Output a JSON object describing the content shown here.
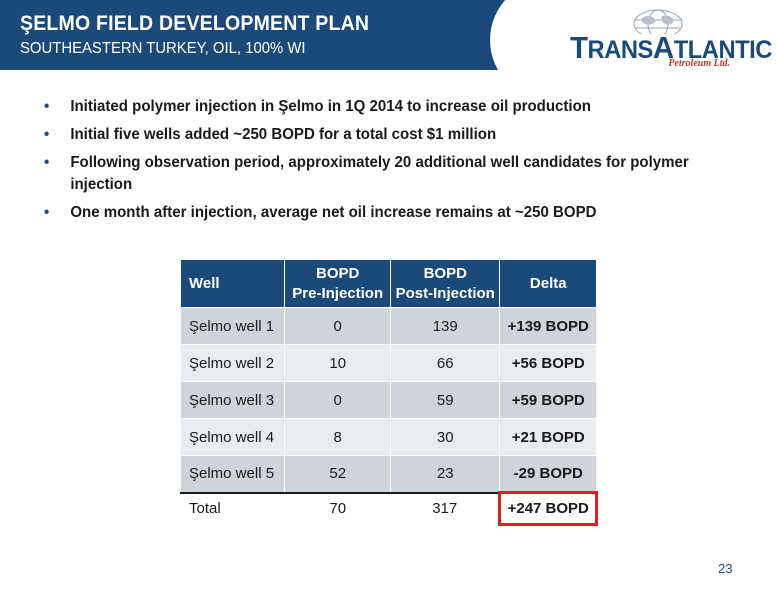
{
  "header": {
    "title": "ŞELMO FIELD DEVELOPMENT PLAN",
    "subtitle": "SOUTHEASTERN TURKEY, OIL, 100% WI"
  },
  "logo": {
    "name_part1": "T",
    "name_part2": "RANS",
    "name_part3": "A",
    "name_part4": "TLANTIC",
    "tagline": "Petroleum Ltd."
  },
  "bullets": [
    "Initiated polymer injection in Şelmo in 1Q 2014 to increase oil production",
    "Initial five wells added ~250 BOPD for a total cost $1 million",
    "Following observation period, approximately 20 additional well candidates for polymer injection",
    "One month after injection, average net oil increase remains at ~250 BOPD"
  ],
  "table": {
    "headers": {
      "well": "Well",
      "pre_line1": "BOPD",
      "pre_line2": "Pre-Injection",
      "post_line1": "BOPD",
      "post_line2": "Post-Injection",
      "delta": "Delta"
    },
    "rows": [
      {
        "well": "Şelmo well 1",
        "pre": "0",
        "post": "139",
        "delta": "+139 BOPD"
      },
      {
        "well": "Şelmo well 2",
        "pre": "10",
        "post": "66",
        "delta": "+56 BOPD"
      },
      {
        "well": "Şelmo well 3",
        "pre": "0",
        "post": "59",
        "delta": "+59 BOPD"
      },
      {
        "well": "Şelmo well 4",
        "pre": "8",
        "post": "30",
        "delta": "+21 BOPD"
      },
      {
        "well": "Şelmo well 5",
        "pre": "52",
        "post": "23",
        "delta": "-29 BOPD"
      }
    ],
    "total": {
      "well": "Total",
      "pre": "70",
      "post": "317",
      "delta": "+247 BOPD"
    }
  },
  "page_number": "23",
  "colors": {
    "brand_blue": "#1b4a7a",
    "highlight_red": "#e02020",
    "row_gray": "#cfd3da",
    "row_light": "#e8ebef"
  }
}
